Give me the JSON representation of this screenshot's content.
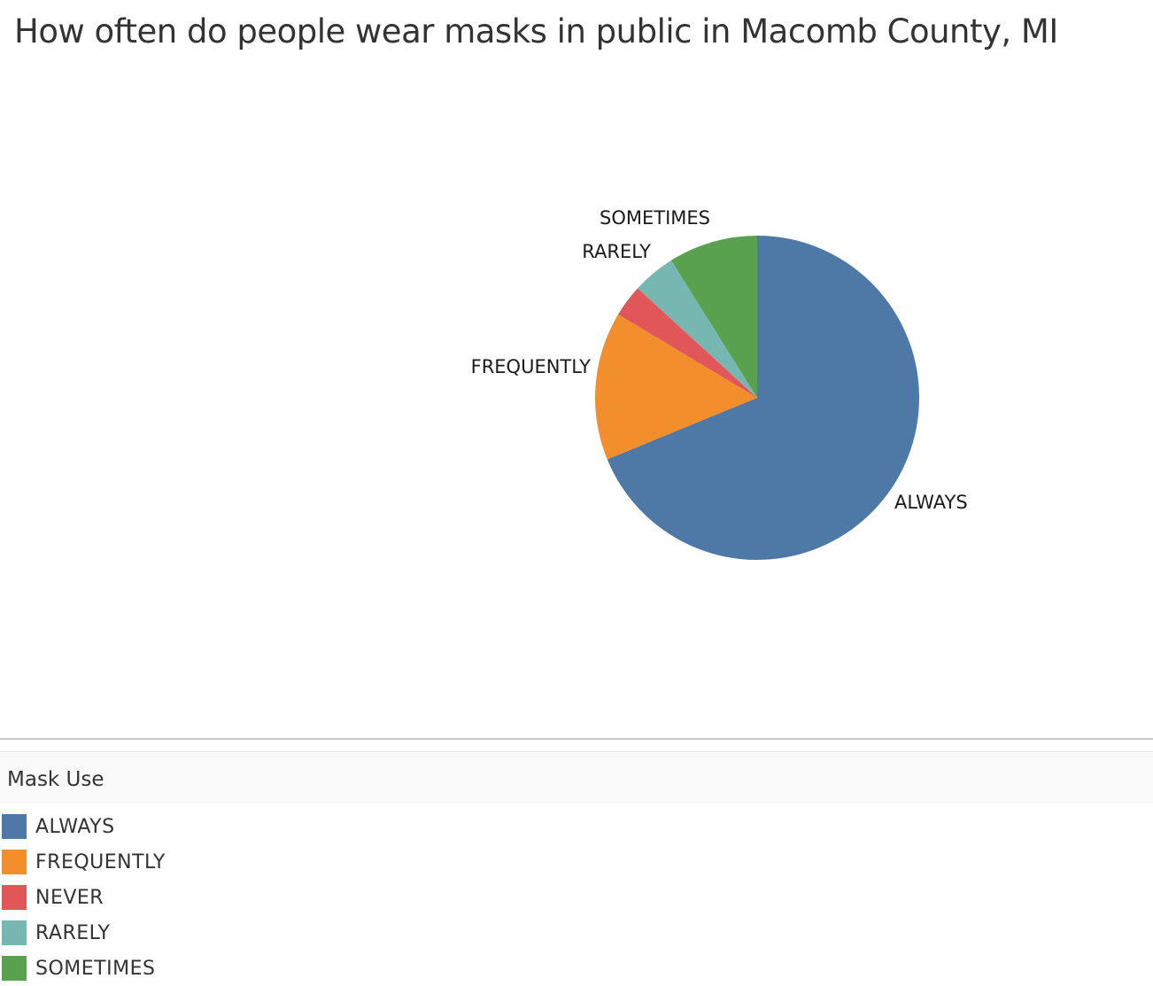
{
  "chart_data": {
    "type": "pie",
    "title": "How often do people wear masks in public in Macomb County, MI",
    "categories": [
      "ALWAYS",
      "FREQUENTLY",
      "NEVER",
      "RARELY",
      "SOMETIMES"
    ],
    "values": [
      0.688,
      0.148,
      0.032,
      0.043,
      0.089
    ],
    "colors": [
      "#4e79a7",
      "#f28e2b",
      "#e15759",
      "#76b7b2",
      "#59a14f"
    ],
    "start_position": "top, clockwise",
    "legend": {
      "title": "Mask Use",
      "placement": "bottom-left"
    }
  }
}
